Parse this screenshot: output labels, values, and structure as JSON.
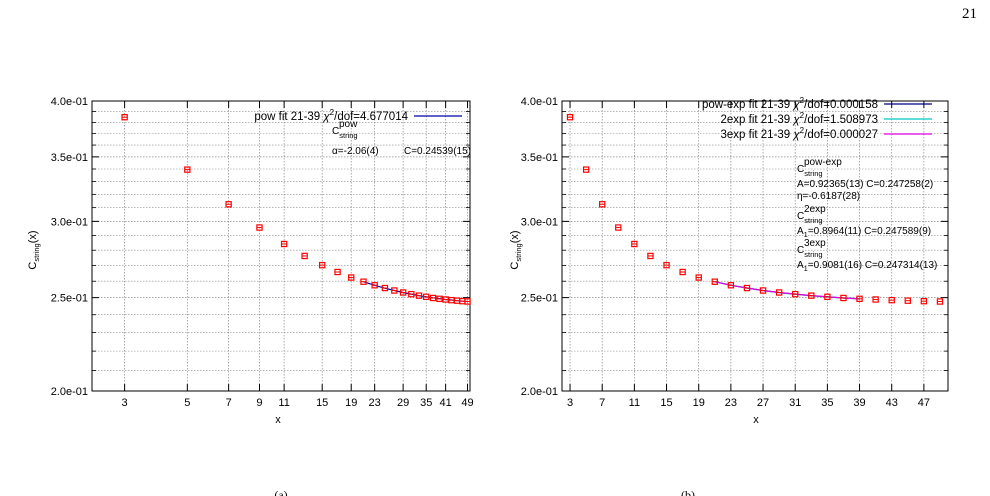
{
  "page_number": "21",
  "subfigure_labels": [
    "(a)",
    "(b)"
  ],
  "colors": {
    "points": "#ff0000",
    "fit_pow": "#0000aa",
    "fit_pow_exp": "#000080",
    "fit_2exp": "#00c8c8",
    "fit_3exp": "#e000e0",
    "grid": "#888888"
  },
  "chart_data": [
    {
      "type": "scatter",
      "xscale": "log",
      "yscale": "log",
      "xlim": [
        2.3,
        50
      ],
      "ylim": [
        0.2,
        0.4
      ],
      "grid": true,
      "legend_placement": "top-right",
      "xlabel": "x",
      "ylabel": "C_string(x)",
      "xticks": [
        3,
        5,
        7,
        9,
        11,
        15,
        19,
        23,
        29,
        35,
        41,
        49
      ],
      "xtick_labels": [
        "3",
        "5",
        "7",
        "9",
        "11",
        "15",
        "19",
        "23",
        "29",
        "35",
        "41",
        "49"
      ],
      "yticks": [
        0.2,
        0.25,
        0.3,
        0.35,
        0.4
      ],
      "ytick_labels": [
        "2.0e-01",
        "2.5e-01",
        "3.0e-01",
        "3.5e-01",
        "4.0e-01"
      ],
      "series": [
        {
          "kind": "points",
          "x": [
            3,
            5,
            7,
            9,
            11,
            13,
            15,
            17,
            19,
            21,
            23,
            25,
            27,
            29,
            31,
            33,
            35,
            37,
            39,
            41,
            43,
            45,
            47,
            49
          ],
          "y": [
            0.3848,
            0.3395,
            0.3125,
            0.2956,
            0.2842,
            0.2762,
            0.2702,
            0.2658,
            0.2623,
            0.2597,
            0.2575,
            0.2558,
            0.2543,
            0.2531,
            0.2521,
            0.2512,
            0.2505,
            0.2498,
            0.2493,
            0.2489,
            0.2485,
            0.2482,
            0.2479,
            0.2477
          ]
        },
        {
          "kind": "fit",
          "name": "pow fit 21-39",
          "legend_suffix": "/dof=4.677014",
          "color": "#0000aa",
          "x": [
            21,
            23,
            25,
            27,
            29,
            31,
            33,
            35,
            37,
            39,
            41,
            43,
            45,
            47,
            49
          ],
          "y": [
            0.2597,
            0.2575,
            0.2557,
            0.2543,
            0.2531,
            0.2521,
            0.2512,
            0.2505,
            0.2499,
            0.2494,
            0.2489,
            0.2486,
            0.2482,
            0.2479,
            0.2477
          ]
        }
      ],
      "annotations": {
        "c_main": "C",
        "c_sub": "string",
        "c_sup": "pow",
        "alpha_line": "α=-2.06(4)",
        "c_line": "C=0.24539(15)"
      }
    },
    {
      "type": "scatter",
      "xscale": "linear",
      "yscale": "log",
      "xlim": [
        2,
        50
      ],
      "ylim": [
        0.2,
        0.4
      ],
      "grid": true,
      "legend_placement": "top-right",
      "xlabel": "x",
      "ylabel": "C_string(x)",
      "xticks": [
        3,
        7,
        11,
        15,
        19,
        23,
        27,
        31,
        35,
        39,
        43,
        47
      ],
      "xtick_labels": [
        "3",
        "7",
        "11",
        "15",
        "19",
        "23",
        "27",
        "31",
        "35",
        "39",
        "43",
        "47"
      ],
      "yticks": [
        0.2,
        0.25,
        0.3,
        0.35,
        0.4
      ],
      "ytick_labels": [
        "2.0e-01",
        "2.5e-01",
        "3.0e-01",
        "3.5e-01",
        "4.0e-01"
      ],
      "series": [
        {
          "kind": "points",
          "x": [
            3,
            5,
            7,
            9,
            11,
            13,
            15,
            17,
            19,
            21,
            23,
            25,
            27,
            29,
            31,
            33,
            35,
            37,
            39,
            41,
            43,
            45,
            47,
            49
          ],
          "y": [
            0.3848,
            0.3395,
            0.3125,
            0.2956,
            0.2842,
            0.2762,
            0.2702,
            0.2658,
            0.2623,
            0.2597,
            0.2575,
            0.2558,
            0.2543,
            0.2531,
            0.2521,
            0.2512,
            0.2505,
            0.2498,
            0.2493,
            0.2489,
            0.2485,
            0.2482,
            0.2479,
            0.2477
          ]
        },
        {
          "kind": "fit",
          "name": "pow-exp fit 21-39",
          "legend_suffix": "/dof=0.000158",
          "color": "#000080",
          "x": [
            21,
            23,
            25,
            27,
            29,
            31,
            33,
            35,
            37,
            39
          ],
          "y": [
            0.2597,
            0.2575,
            0.2558,
            0.2543,
            0.2531,
            0.2521,
            0.2512,
            0.2505,
            0.2498,
            0.2493
          ]
        },
        {
          "kind": "fit",
          "name": "2exp fit 21-39",
          "legend_suffix": "/dof=1.508973",
          "color": "#00c8c8",
          "x": [
            21,
            23,
            25,
            27,
            29,
            31,
            33,
            35,
            37,
            39
          ],
          "y": [
            0.2598,
            0.2576,
            0.2558,
            0.2543,
            0.253,
            0.252,
            0.2511,
            0.2504,
            0.2498,
            0.2493
          ]
        },
        {
          "kind": "fit",
          "name": "3exp fit 21-39",
          "legend_suffix": "/dof=0.000027",
          "color": "#e000e0",
          "x": [
            21,
            23,
            25,
            27,
            29,
            31,
            33,
            35,
            37,
            39
          ],
          "y": [
            0.2597,
            0.2575,
            0.2558,
            0.2543,
            0.2531,
            0.2521,
            0.2512,
            0.2505,
            0.2498,
            0.2493
          ]
        }
      ],
      "annotations": {
        "c_main": "C",
        "c_sub": "string",
        "sup_powexp": "pow-exp",
        "powexp_line1": "A=0.92365(13) C=0.247258(2)",
        "powexp_line2": "η=-0.6187(28)",
        "sup_2exp": "2exp",
        "twoexp_line": "=0.8964(11) C=0.247589(9)",
        "sup_3exp": "3exp",
        "threeexp_line": "=0.9081(16) C=0.247314(13)"
      }
    }
  ]
}
